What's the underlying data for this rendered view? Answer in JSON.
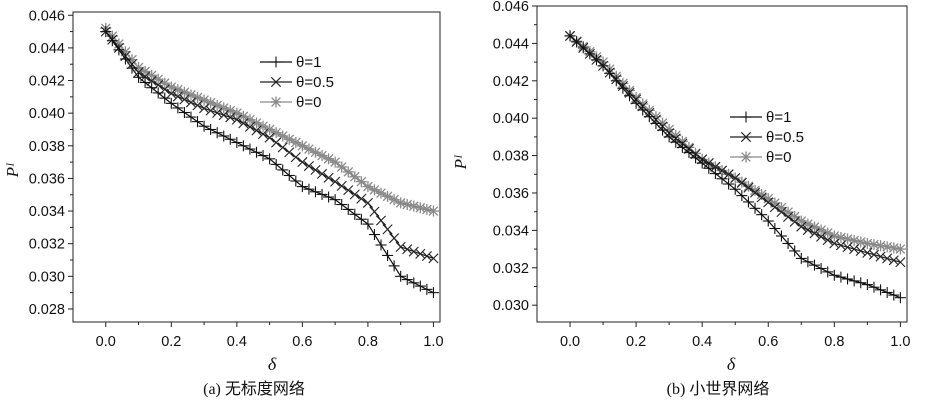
{
  "chart_data": [
    {
      "type": "line",
      "caption": "(a) 无标度网络",
      "xlabel": "δ",
      "ylabel": "Pᴵ",
      "xlim": [
        -0.1,
        1.02
      ],
      "ylim": [
        0.0272,
        0.0462
      ],
      "xticks": [
        0.0,
        0.2,
        0.4,
        0.6,
        0.8,
        1.0
      ],
      "xtick_labels": [
        "0.0",
        "0.2",
        "0.4",
        "0.6",
        "0.8",
        "1.0"
      ],
      "yticks": [
        0.028,
        0.03,
        0.032,
        0.034,
        0.036,
        0.038,
        0.04,
        0.042,
        0.044,
        0.046
      ],
      "ytick_labels": [
        "0.028",
        "0.030",
        "0.032",
        "0.034",
        "0.036",
        "0.038",
        "0.040",
        "0.042",
        "0.044",
        "0.046"
      ],
      "grid": false,
      "legend_position": "top-right",
      "x": [
        0.0,
        0.1,
        0.2,
        0.3,
        0.4,
        0.5,
        0.6,
        0.7,
        0.8,
        0.9,
        1.0
      ],
      "series": [
        {
          "name": "θ=1",
          "marker": "plus",
          "color": "#111111",
          "values": [
            0.045,
            0.0422,
            0.0406,
            0.0392,
            0.0382,
            0.0372,
            0.0355,
            0.0347,
            0.0332,
            0.03,
            0.029
          ]
        },
        {
          "name": "θ=0.5",
          "marker": "x",
          "color": "#222222",
          "values": [
            0.045,
            0.0425,
            0.0412,
            0.0403,
            0.0396,
            0.0385,
            0.037,
            0.0358,
            0.0345,
            0.0318,
            0.0311
          ]
        },
        {
          "name": "θ=0",
          "marker": "star",
          "color": "#8a8a8a",
          "values": [
            0.0452,
            0.0428,
            0.0416,
            0.0408,
            0.04,
            0.039,
            0.038,
            0.037,
            0.0355,
            0.0345,
            0.034
          ]
        }
      ]
    },
    {
      "type": "line",
      "caption": "(b) 小世界网络",
      "xlabel": "δ",
      "ylabel": "Pᴵ",
      "xlim": [
        -0.1,
        1.02
      ],
      "ylim": [
        0.0291,
        0.046
      ],
      "xticks": [
        0.0,
        0.2,
        0.4,
        0.6,
        0.8,
        1.0
      ],
      "xtick_labels": [
        "0.0",
        "0.2",
        "0.4",
        "0.6",
        "0.8",
        "1.0"
      ],
      "yticks": [
        0.03,
        0.032,
        0.034,
        0.036,
        0.038,
        0.04,
        0.042,
        0.044,
        0.046
      ],
      "ytick_labels": [
        "0.030",
        "0.032",
        "0.034",
        "0.036",
        "0.038",
        "0.040",
        "0.042",
        "0.044",
        "0.046"
      ],
      "grid": false,
      "legend_position": "right",
      "x": [
        0.0,
        0.1,
        0.2,
        0.3,
        0.4,
        0.5,
        0.6,
        0.7,
        0.8,
        0.9,
        1.0
      ],
      "series": [
        {
          "name": "θ=1",
          "marker": "plus",
          "color": "#111111",
          "values": [
            0.0444,
            0.0428,
            0.0408,
            0.039,
            0.0376,
            0.0362,
            0.0345,
            0.0325,
            0.0316,
            0.0311,
            0.0304
          ]
        },
        {
          "name": "θ=0.5",
          "marker": "x",
          "color": "#222222",
          "values": [
            0.0444,
            0.0428,
            0.041,
            0.0392,
            0.0378,
            0.0368,
            0.0355,
            0.0342,
            0.0333,
            0.0328,
            0.0323
          ]
        },
        {
          "name": "θ=0",
          "marker": "star",
          "color": "#8a8a8a",
          "values": [
            0.0444,
            0.043,
            0.0411,
            0.0394,
            0.0378,
            0.0368,
            0.0357,
            0.0345,
            0.0337,
            0.0333,
            0.033
          ]
        }
      ]
    }
  ]
}
